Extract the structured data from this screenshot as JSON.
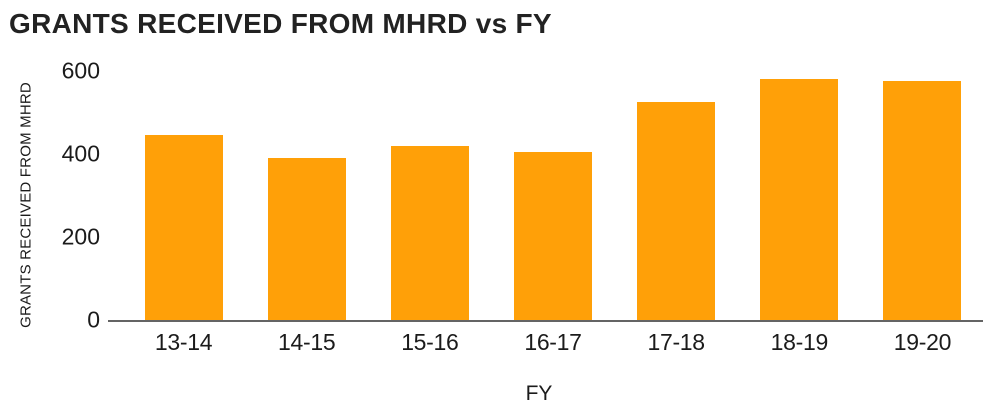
{
  "title": "GRANTS RECEIVED FROM MHRD vs FY",
  "chart_data": {
    "type": "bar",
    "title": "GRANTS RECEIVED FROM MHRD vs FY",
    "categories": [
      "13-14",
      "14-15",
      "15-16",
      "16-17",
      "17-18",
      "18-19",
      "19-20"
    ],
    "values": [
      445,
      390,
      420,
      405,
      525,
      580,
      575
    ],
    "xlabel": "FY",
    "ylabel": "GRANTS RECEIVED FROM MHRD",
    "ylim": [
      0,
      600
    ],
    "yticks": [
      0,
      200,
      400,
      600
    ],
    "grid": false,
    "legend": "none",
    "bar_color": "#FFA008",
    "axis_line_color": "#646464",
    "text_color": "#1B1B1B",
    "background_color": "#FFFFFF"
  }
}
